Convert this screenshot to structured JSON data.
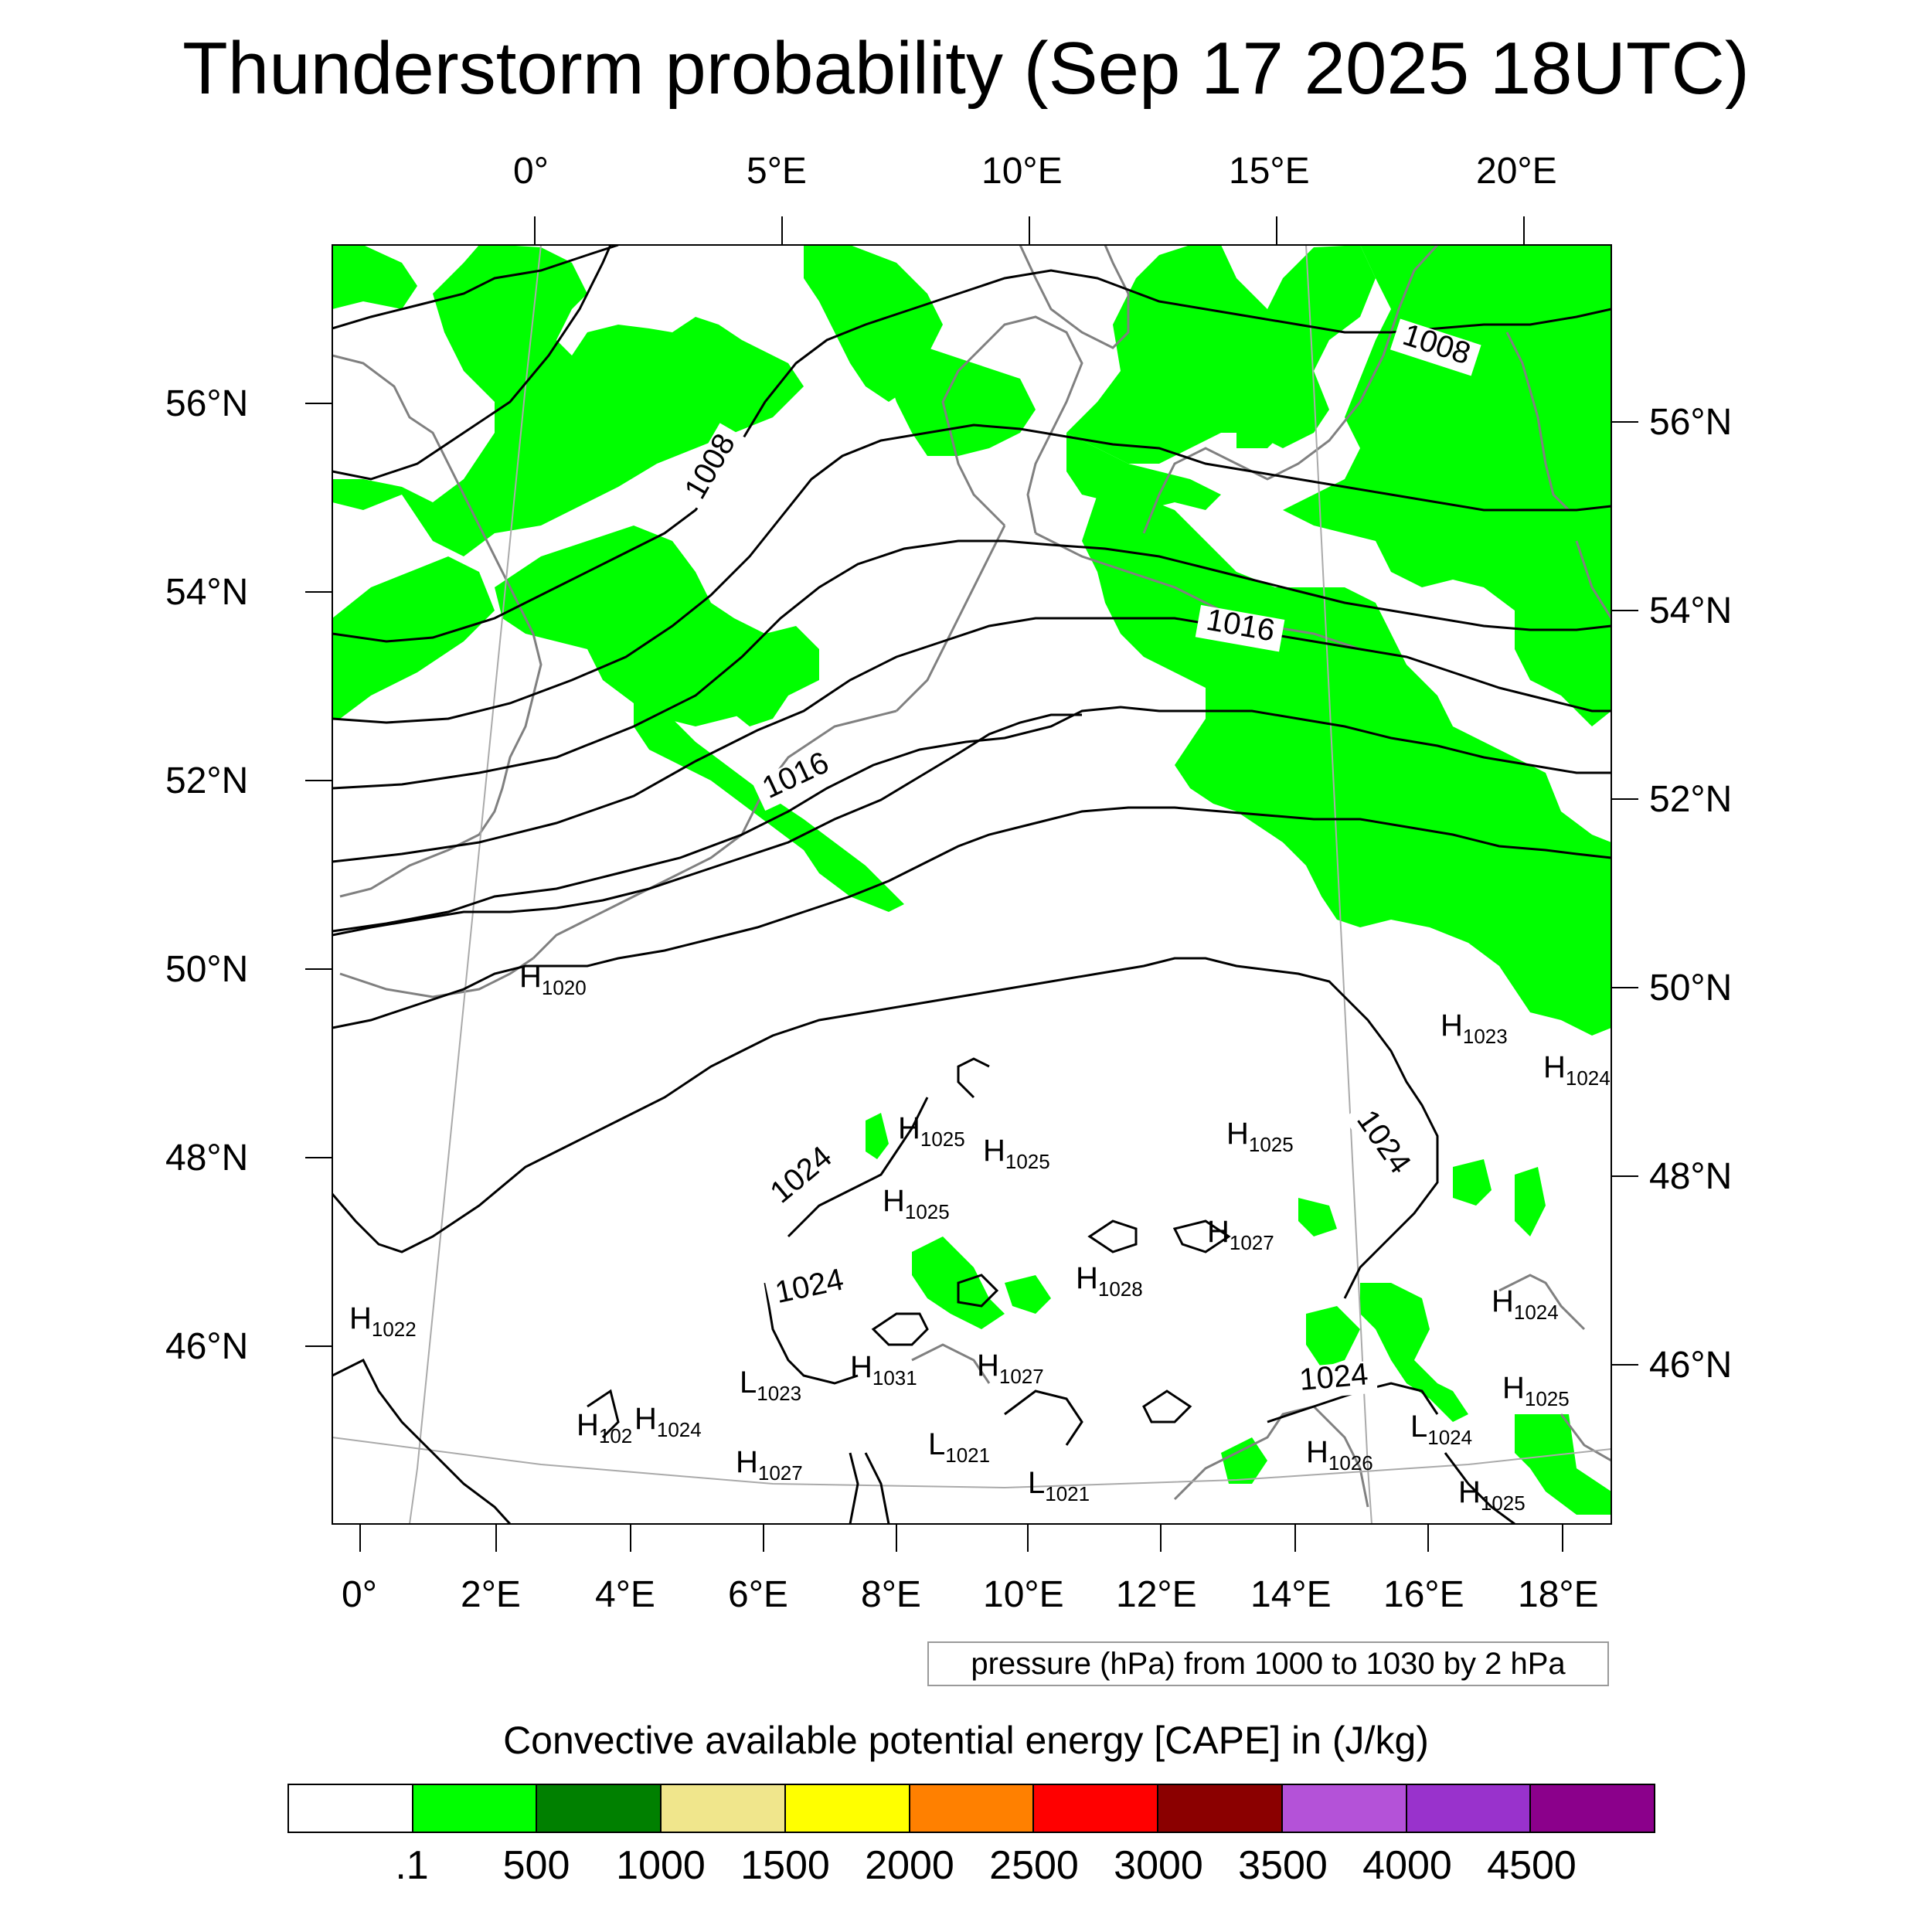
{
  "title": "Thunderstorm probability (Sep 17 2025 18UTC)",
  "top_lon_labels": [
    "0°",
    "5°E",
    "10°E",
    "15°E",
    "20°E"
  ],
  "left_lat_labels": [
    "56°N",
    "54°N",
    "52°N",
    "50°N",
    "48°N",
    "46°N"
  ],
  "right_lat_labels": [
    "56°N",
    "54°N",
    "52°N",
    "50°N",
    "48°N",
    "46°N"
  ],
  "bottom_lon_labels": [
    "0°",
    "2°E",
    "4°E",
    "6°E",
    "8°E",
    "10°E",
    "12°E",
    "14°E",
    "16°E",
    "18°E"
  ],
  "isobar_labels": [
    "1008",
    "1008",
    "1016",
    "1016",
    "1024",
    "1024",
    "1024",
    "1024"
  ],
  "pressure_centers": [
    {
      "type": "H",
      "value": "1020"
    },
    {
      "type": "H",
      "value": "1023"
    },
    {
      "type": "H",
      "value": "1024"
    },
    {
      "type": "H",
      "value": "1025"
    },
    {
      "type": "H",
      "value": "1025"
    },
    {
      "type": "H",
      "value": "1025"
    },
    {
      "type": "H",
      "value": "1025"
    },
    {
      "type": "H",
      "value": "1027"
    },
    {
      "type": "H",
      "value": "1028"
    },
    {
      "type": "H",
      "value": "1022"
    },
    {
      "type": "H",
      "value": "1031"
    },
    {
      "type": "H",
      "value": "1027"
    },
    {
      "type": "L",
      "value": "1023"
    },
    {
      "type": "H",
      "value": "102"
    },
    {
      "type": "H",
      "value": "1024"
    },
    {
      "type": "H",
      "value": "1027"
    },
    {
      "type": "L",
      "value": "1021"
    },
    {
      "type": "L",
      "value": "1021"
    },
    {
      "type": "H",
      "value": "1024"
    },
    {
      "type": "H",
      "value": "1025"
    },
    {
      "type": "H",
      "value": "1026"
    },
    {
      "type": "L",
      "value": "1024"
    },
    {
      "type": "H",
      "value": "1025"
    }
  ],
  "pressure_note": "pressure (hPa) from 1000 to 1030 by 2 hPa",
  "colorbar": {
    "title": "Convective available potential energy [CAPE] in (J/kg)",
    "colors": [
      "#ffffff",
      "#00ff00",
      "#008000",
      "#f0e68c",
      "#ffff00",
      "#ff8000",
      "#ff0000",
      "#8b0000",
      "#b452d8",
      "#9932cc",
      "#8b008b"
    ],
    "tick_labels": [
      ".1",
      "500",
      "1000",
      "1500",
      "2000",
      "2500",
      "3000",
      "3500",
      "4000",
      "4500"
    ]
  },
  "cape_color": "#00ff00",
  "coast_color": "#808080"
}
